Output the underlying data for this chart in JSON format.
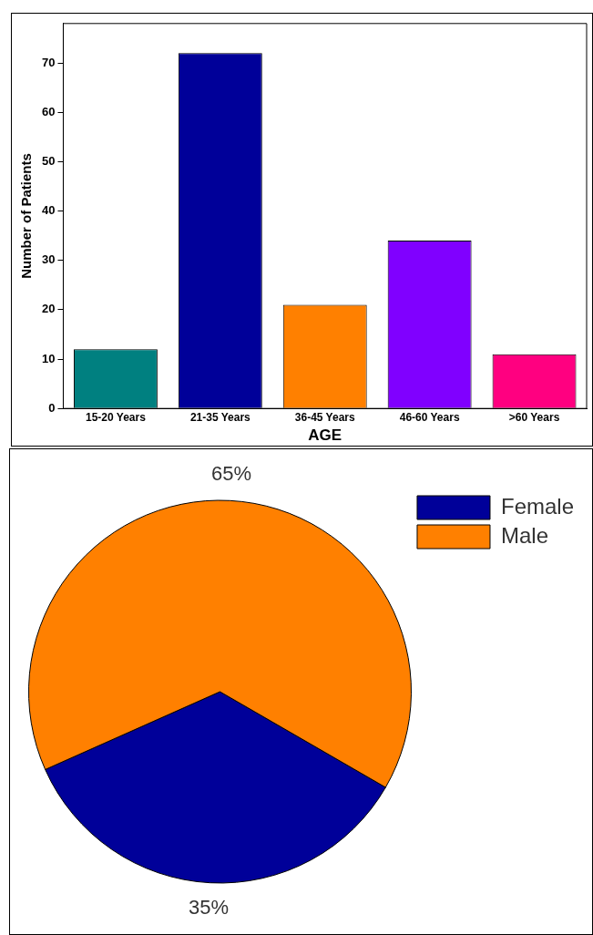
{
  "chart_data": [
    {
      "type": "bar",
      "xlabel": "AGE",
      "ylabel": "Number of Patients",
      "categories": [
        "15-20 Years",
        "21-35 Years",
        "36-45 Years",
        "46-60 Years",
        ">60 Years"
      ],
      "values": [
        12,
        72,
        21,
        34,
        11
      ],
      "colors": [
        "#008080",
        "#000099",
        "#ff8000",
        "#8000ff",
        "#ff0080"
      ],
      "ylim": [
        0,
        78
      ],
      "yticks": [
        0,
        10,
        20,
        30,
        40,
        50,
        60,
        70
      ],
      "grid": false,
      "legend": false
    },
    {
      "type": "pie",
      "categories": [
        "Female",
        "Male"
      ],
      "values": [
        35,
        65
      ],
      "colors": [
        "#000099",
        "#ff8000"
      ],
      "value_labels": [
        "35%",
        "65%"
      ],
      "legend": "top right"
    }
  ]
}
